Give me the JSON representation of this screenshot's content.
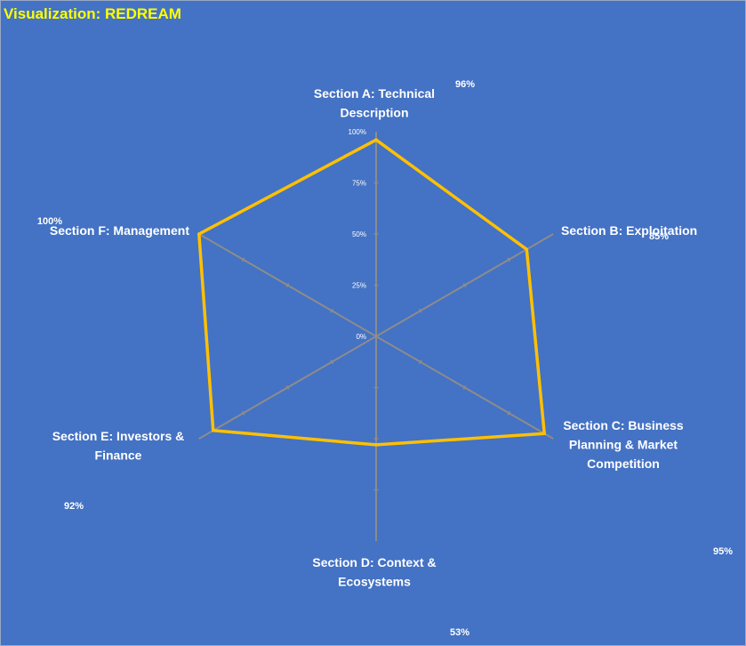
{
  "title": "Visualization: REDREAM",
  "colors": {
    "background": "#4472c4",
    "series": "#ffc000",
    "axis": "#8c8c8c",
    "title": "#ffff00",
    "text": "#ffffff"
  },
  "chart_data": {
    "type": "radar",
    "title": "Visualization: REDREAM",
    "categories": [
      "Section A: Technical Description",
      "Section B: Exploitation",
      "Section C: Business Planning & Market Competition",
      "Section D: Context & Ecosystems",
      "Section E: Investors & Finance",
      "Section F: Management"
    ],
    "series": [
      {
        "values": [
          96,
          85,
          95,
          53,
          92,
          100
        ]
      }
    ],
    "value_labels": [
      "96%",
      "85%",
      "95%",
      "53%",
      "92%",
      "100%"
    ],
    "ticks": [
      "0%",
      "25%",
      "50%",
      "75%",
      "100%"
    ],
    "range": [
      0,
      100
    ],
    "grid": false,
    "legend": "none"
  }
}
